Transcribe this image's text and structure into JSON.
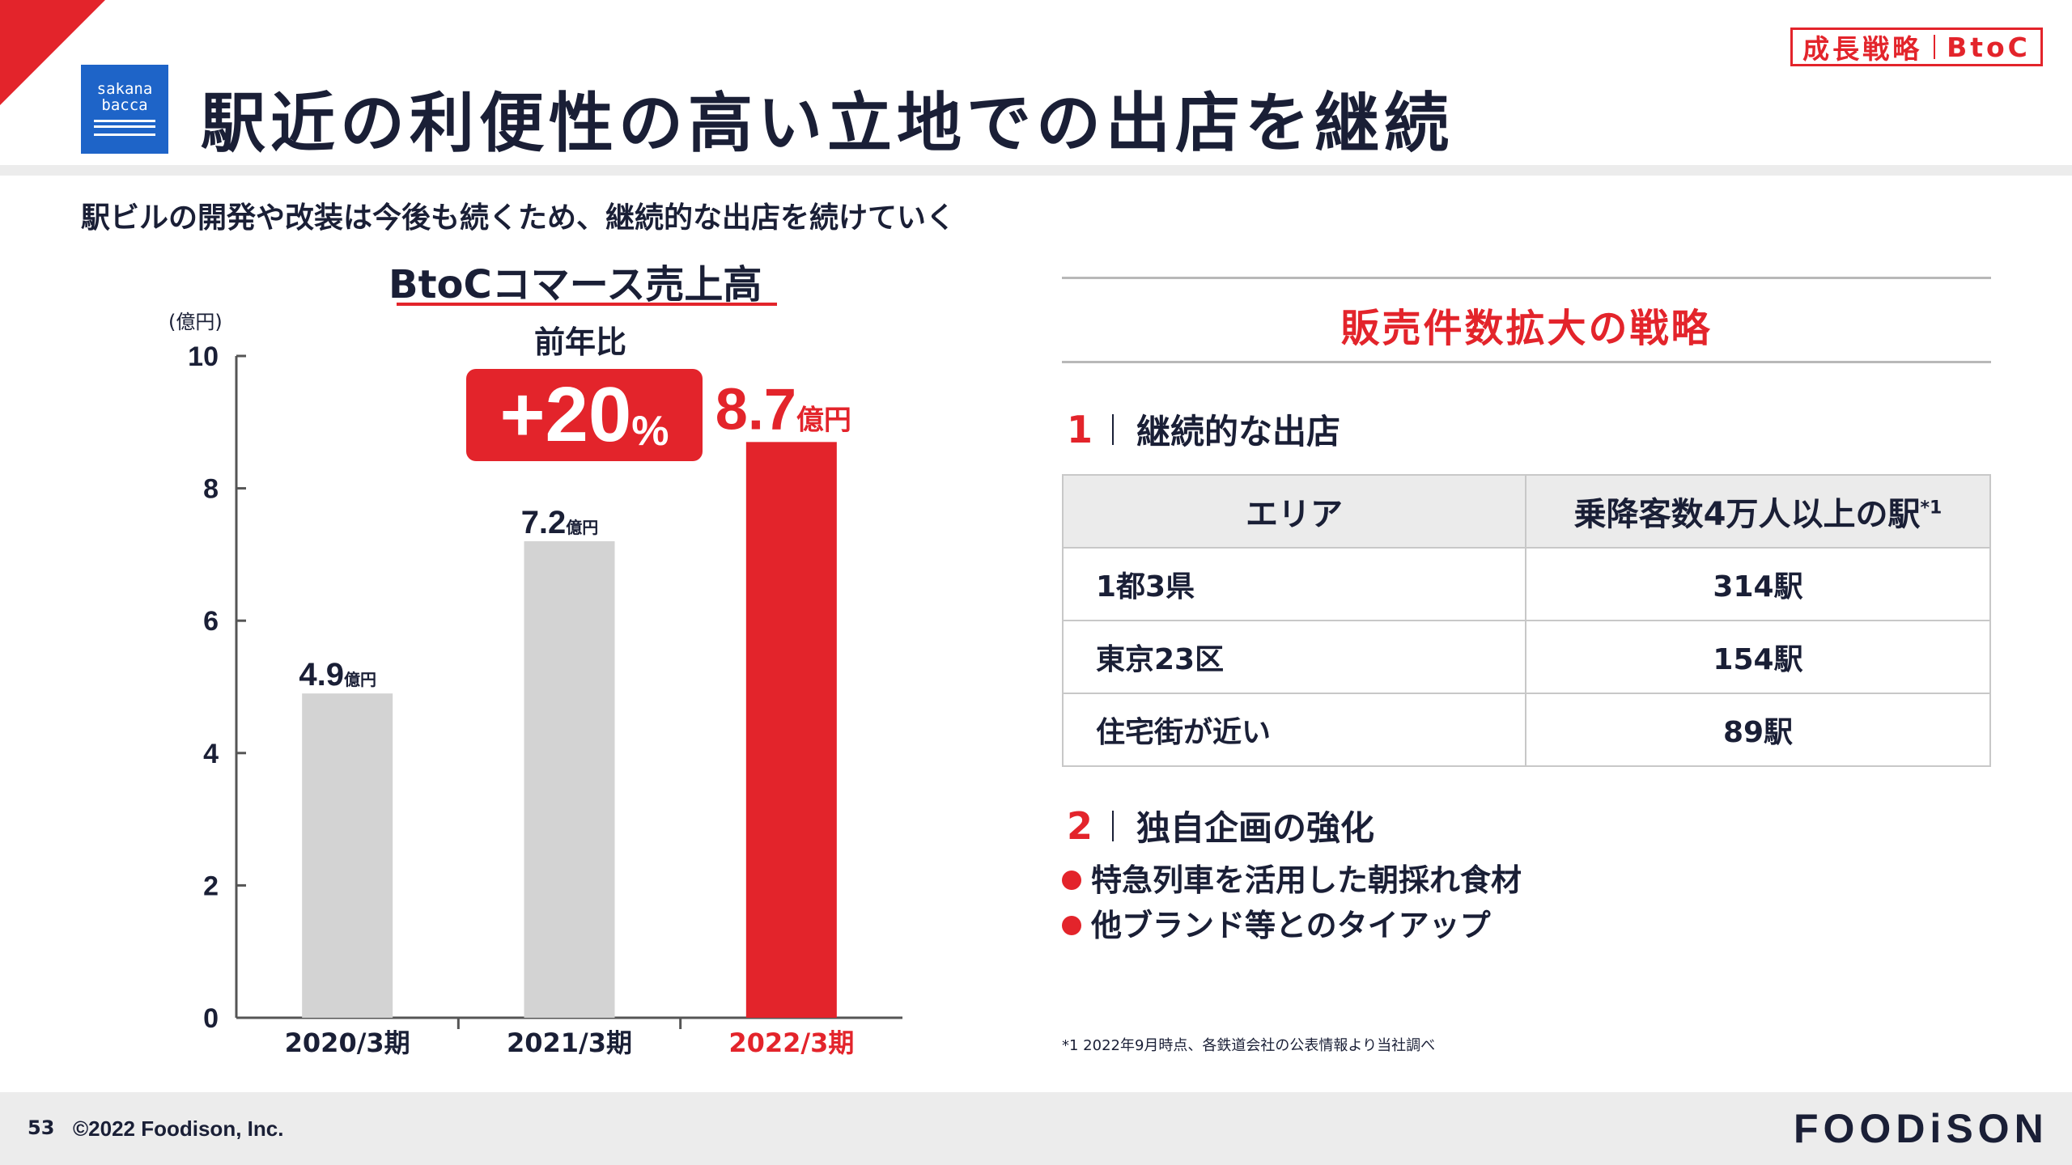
{
  "header": {
    "logo_text_top": "sakana",
    "logo_text_bottom": "bacca",
    "title": "駅近の利便性の高い立地での出店を継続",
    "tag_left": "成長戦略",
    "tag_right": "BtoC"
  },
  "subtitle": "駅ビルの開発や改装は今後も続くため、継続的な出店を続けていく",
  "chart": {
    "title": "BtoCコマース売上高",
    "yoy_label": "前年比",
    "yoy_value": "+20",
    "yoy_unit": "%"
  },
  "chart_data": {
    "type": "bar",
    "categories": [
      "2020/3期",
      "2021/3期",
      "2022/3期"
    ],
    "values": [
      4.9,
      7.2,
      8.7
    ],
    "value_labels": [
      "4.9",
      "7.2",
      "8.7"
    ],
    "value_unit": "億円",
    "ylabel": "(億円)",
    "ylim": [
      0,
      10
    ],
    "yticks": [
      0,
      2,
      4,
      6,
      8,
      10
    ],
    "colors": [
      "#d3d3d3",
      "#d3d3d3",
      "#e3242b"
    ],
    "highlight_index": 2,
    "grid": false
  },
  "strategy": {
    "title": "販売件数拡大の戦略",
    "section1_num": "1",
    "section1_title": "継続的な出店",
    "table_header_area": "エリア",
    "table_header_count": "乗降客数4万人以上の駅",
    "table_header_sup": "*1",
    "rows": [
      {
        "area": "1都3県",
        "count": "314駅"
      },
      {
        "area": "東京23区",
        "count": "154駅"
      },
      {
        "area": "住宅街が近い",
        "count": "89駅"
      }
    ],
    "section2_num": "2",
    "section2_title": "独自企画の強化",
    "bullets": [
      "特急列車を活用した朝採れ食材",
      "他ブランド等とのタイアップ"
    ],
    "footnote": "*1 2022年9月時点、各鉄道会社の公表情報より当社調べ"
  },
  "footer": {
    "page": "53",
    "copyright": "©2022 Foodison, Inc.",
    "brand": "FOODiSON"
  },
  "colors": {
    "accent": "#e3242b",
    "logo_blue": "#1e64c8",
    "bar_gray": "#d3d3d3",
    "text": "#1a1f36"
  }
}
